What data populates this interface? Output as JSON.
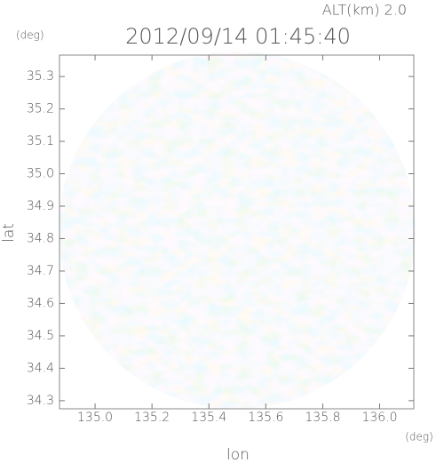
{
  "chart_data": {
    "type": "map",
    "title": "2012/09/14 01:45:40",
    "altitude_label": "ALT(km) 2.0",
    "y_unit": "(deg)",
    "x_unit": "(deg)",
    "xlabel": "lon",
    "ylabel": "lat",
    "xlim": [
      134.875,
      136.12
    ],
    "ylim": [
      34.275,
      35.366
    ],
    "xticks": [
      {
        "value": 135.0,
        "label": "135.0"
      },
      {
        "value": 135.2,
        "label": "135.2"
      },
      {
        "value": 135.4,
        "label": "135.4"
      },
      {
        "value": 135.6,
        "label": "135.6"
      },
      {
        "value": 135.8,
        "label": "135.8"
      },
      {
        "value": 136.0,
        "label": "136.0"
      }
    ],
    "yticks": [
      {
        "value": 34.3,
        "label": "34.3"
      },
      {
        "value": 34.4,
        "label": "34.4"
      },
      {
        "value": 34.5,
        "label": "34.5"
      },
      {
        "value": 34.6,
        "label": "34.6"
      },
      {
        "value": 34.7,
        "label": "34.7"
      },
      {
        "value": 34.8,
        "label": "34.8"
      },
      {
        "value": 34.9,
        "label": "34.9"
      },
      {
        "value": 35.0,
        "label": "35.0"
      },
      {
        "value": 35.1,
        "label": "35.1"
      },
      {
        "value": 35.2,
        "label": "35.2"
      },
      {
        "value": 35.3,
        "label": "35.3"
      }
    ]
  }
}
